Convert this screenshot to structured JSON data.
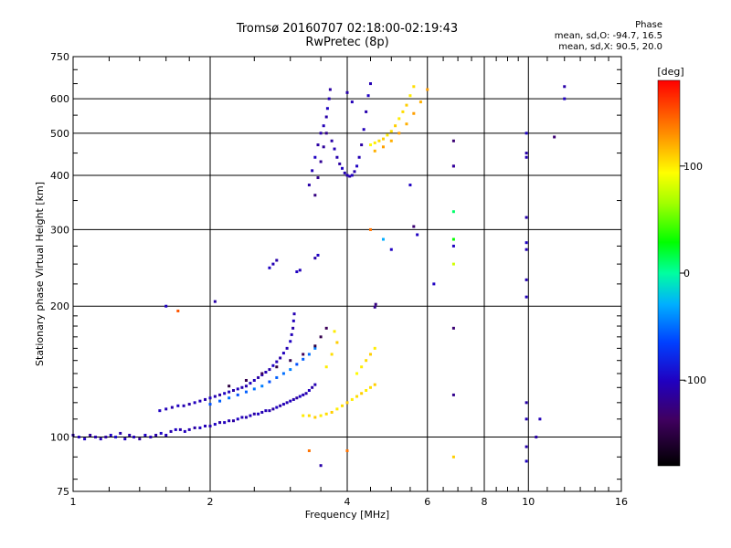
{
  "header": {
    "title": "Tromsø 20160707 02:18:00-02:19:43",
    "subtitle": "RwPretec (8p)"
  },
  "phase_info": {
    "heading": "Phase",
    "line_o": "mean, sd,O: -94.7, 16.5",
    "line_x": "mean, sd,X:  90.5, 20.0"
  },
  "chart_data": {
    "type": "scatter",
    "title": "Tromsø 20160707 02:18:00-02:19:43",
    "subtitle": "RwPretec (8p)",
    "xlabel": "Frequency [MHz]",
    "ylabel": "Stationary phase Virtual Height [km]",
    "xscale": "log",
    "yscale": "log",
    "xlim": [
      1,
      16
    ],
    "ylim": [
      75,
      750
    ],
    "x_ticks": [
      1,
      2,
      4,
      6,
      8,
      10,
      16
    ],
    "y_ticks": [
      75,
      100,
      200,
      300,
      400,
      500,
      600,
      750
    ],
    "grid": true,
    "colorbar": {
      "label": "[deg]",
      "range": [
        -180,
        180
      ],
      "ticks": [
        -100,
        0,
        100
      ]
    },
    "series": [
      {
        "points": [
          [
            1.0,
            101,
            -110
          ],
          [
            1.03,
            100,
            -105
          ],
          [
            1.06,
            99,
            -100
          ],
          [
            1.09,
            101,
            -115
          ],
          [
            1.12,
            100,
            -108
          ],
          [
            1.15,
            99,
            -104
          ],
          [
            1.18,
            100,
            -112
          ],
          [
            1.21,
            101,
            -100
          ],
          [
            1.24,
            100,
            -95
          ],
          [
            1.27,
            102,
            -110
          ],
          [
            1.3,
            99,
            -102
          ],
          [
            1.33,
            101,
            -108
          ],
          [
            1.36,
            100,
            -104
          ],
          [
            1.4,
            99,
            -115
          ],
          [
            1.44,
            101,
            -100
          ],
          [
            1.48,
            100,
            -106
          ],
          [
            1.52,
            101,
            -110
          ],
          [
            1.56,
            102,
            -98
          ],
          [
            1.6,
            101,
            -104
          ],
          [
            1.64,
            103,
            -108
          ],
          [
            1.68,
            104,
            -100
          ],
          [
            1.72,
            104,
            -110
          ],
          [
            1.76,
            103,
            -102
          ],
          [
            1.8,
            104,
            -106
          ],
          [
            1.85,
            105,
            -112
          ],
          [
            1.9,
            105,
            -100
          ],
          [
            1.95,
            106,
            -104
          ],
          [
            2.0,
            106,
            -108
          ],
          [
            2.05,
            107,
            -100
          ],
          [
            2.1,
            108,
            -110
          ],
          [
            2.15,
            108,
            -102
          ],
          [
            2.2,
            109,
            -106
          ],
          [
            2.25,
            109,
            -112
          ],
          [
            2.3,
            110,
            -100
          ],
          [
            2.35,
            111,
            -104
          ],
          [
            2.4,
            111,
            -108
          ],
          [
            2.45,
            112,
            -102
          ],
          [
            2.5,
            113,
            -110
          ],
          [
            2.55,
            113,
            -100
          ],
          [
            2.6,
            114,
            -106
          ],
          [
            2.65,
            115,
            -104
          ],
          [
            2.7,
            115,
            -108
          ],
          [
            2.75,
            116,
            -112
          ],
          [
            2.8,
            117,
            -100
          ],
          [
            2.85,
            118,
            -110
          ],
          [
            2.9,
            119,
            -104
          ],
          [
            2.95,
            120,
            -106
          ],
          [
            3.0,
            121,
            -102
          ],
          [
            3.05,
            122,
            -108
          ],
          [
            3.1,
            123,
            -112
          ],
          [
            3.15,
            124,
            -100
          ],
          [
            3.2,
            125,
            -104
          ],
          [
            3.25,
            126,
            -108
          ],
          [
            3.3,
            128,
            -102
          ],
          [
            3.35,
            130,
            -110
          ],
          [
            3.4,
            132,
            -106
          ]
        ]
      },
      {
        "points": [
          [
            1.55,
            115,
            -100
          ],
          [
            1.6,
            116,
            -104
          ],
          [
            1.65,
            117,
            -108
          ],
          [
            1.7,
            118,
            -100
          ],
          [
            1.75,
            118,
            -106
          ],
          [
            1.8,
            119,
            -110
          ],
          [
            1.85,
            120,
            -102
          ],
          [
            1.9,
            121,
            -104
          ],
          [
            1.95,
            122,
            -108
          ],
          [
            2.0,
            123,
            -100
          ],
          [
            2.05,
            124,
            -106
          ],
          [
            2.1,
            125,
            -112
          ],
          [
            2.15,
            126,
            -100
          ],
          [
            2.2,
            127,
            -104
          ],
          [
            2.25,
            128,
            -110
          ],
          [
            2.3,
            129,
            -102
          ],
          [
            2.35,
            130,
            -106
          ],
          [
            2.4,
            131,
            -108
          ],
          [
            2.45,
            133,
            -100
          ],
          [
            2.5,
            135,
            -104
          ],
          [
            2.55,
            137,
            -110
          ],
          [
            2.6,
            139,
            -102
          ],
          [
            2.65,
            141,
            -106
          ],
          [
            2.7,
            143,
            -108
          ],
          [
            2.75,
            146,
            -100
          ],
          [
            2.8,
            149,
            -104
          ],
          [
            2.85,
            152,
            -110
          ],
          [
            2.9,
            156,
            -102
          ],
          [
            2.95,
            160,
            -106
          ],
          [
            3.0,
            166,
            -100
          ],
          [
            3.02,
            172,
            -104
          ],
          [
            3.04,
            178,
            -110
          ],
          [
            3.05,
            185,
            -102
          ],
          [
            3.06,
            192,
            -106
          ]
        ]
      },
      {
        "points": [
          [
            2.0,
            119,
            -60
          ],
          [
            2.1,
            121,
            -55
          ],
          [
            2.2,
            123,
            -50
          ],
          [
            2.3,
            125,
            -60
          ],
          [
            2.4,
            127,
            -55
          ],
          [
            2.5,
            129,
            -50
          ],
          [
            2.6,
            131,
            -45
          ],
          [
            2.7,
            134,
            -60
          ],
          [
            2.8,
            137,
            -55
          ],
          [
            2.9,
            140,
            -50
          ],
          [
            3.0,
            143,
            -45
          ],
          [
            3.1,
            147,
            -60
          ],
          [
            3.2,
            151,
            -55
          ],
          [
            3.3,
            155,
            -50
          ],
          [
            3.4,
            160,
            -45
          ],
          [
            2.2,
            131,
            -150
          ],
          [
            2.4,
            135,
            -145
          ],
          [
            2.6,
            140,
            -140
          ],
          [
            2.8,
            145,
            -150
          ],
          [
            3.0,
            150,
            -145
          ],
          [
            3.2,
            155,
            -140
          ],
          [
            3.4,
            162,
            -150
          ],
          [
            3.5,
            170,
            -145
          ],
          [
            3.6,
            178,
            -140
          ]
        ]
      },
      {
        "points": [
          [
            3.2,
            112,
            100
          ],
          [
            3.3,
            112,
            105
          ],
          [
            3.4,
            111,
            110
          ],
          [
            3.5,
            112,
            100
          ],
          [
            3.6,
            113,
            105
          ],
          [
            3.7,
            114,
            110
          ],
          [
            3.8,
            116,
            100
          ],
          [
            3.9,
            118,
            105
          ],
          [
            4.0,
            120,
            110
          ],
          [
            4.1,
            122,
            100
          ],
          [
            4.2,
            124,
            105
          ],
          [
            4.3,
            126,
            110
          ],
          [
            4.4,
            128,
            100
          ],
          [
            4.5,
            130,
            105
          ],
          [
            4.6,
            132,
            110
          ],
          [
            3.6,
            145,
            100
          ],
          [
            3.7,
            155,
            105
          ],
          [
            3.8,
            165,
            110
          ],
          [
            3.75,
            175,
            100
          ],
          [
            4.2,
            140,
            95
          ],
          [
            4.3,
            145,
            100
          ],
          [
            4.4,
            150,
            105
          ],
          [
            4.5,
            155,
            110
          ],
          [
            4.6,
            160,
            100
          ]
        ]
      },
      {
        "points": [
          [
            3.3,
            380,
            -110
          ],
          [
            3.35,
            410,
            -105
          ],
          [
            3.4,
            440,
            -100
          ],
          [
            3.45,
            470,
            -112
          ],
          [
            3.5,
            500,
            -108
          ],
          [
            3.55,
            520,
            -104
          ],
          [
            3.6,
            545,
            -110
          ],
          [
            3.62,
            570,
            -100
          ],
          [
            3.65,
            600,
            -106
          ],
          [
            3.67,
            630,
            -112
          ],
          [
            3.4,
            360,
            -125
          ],
          [
            3.45,
            395,
            -120
          ],
          [
            3.5,
            430,
            -118
          ],
          [
            3.55,
            465,
            -115
          ],
          [
            3.6,
            500,
            -120
          ],
          [
            3.7,
            480,
            -110
          ],
          [
            3.75,
            460,
            -105
          ],
          [
            3.8,
            440,
            -108
          ],
          [
            3.85,
            425,
            -112
          ],
          [
            3.9,
            415,
            -100
          ],
          [
            3.95,
            405,
            -106
          ],
          [
            4.0,
            400,
            -104
          ],
          [
            4.05,
            398,
            -110
          ],
          [
            4.1,
            400,
            -102
          ],
          [
            4.15,
            408,
            -108
          ],
          [
            4.2,
            420,
            -100
          ],
          [
            4.25,
            440,
            -106
          ],
          [
            4.3,
            470,
            -112
          ],
          [
            4.35,
            510,
            -104
          ],
          [
            4.4,
            560,
            -108
          ],
          [
            4.45,
            610,
            -100
          ],
          [
            4.5,
            650,
            -106
          ],
          [
            4.0,
            620,
            -110
          ],
          [
            4.1,
            590,
            -104
          ]
        ]
      },
      {
        "points": [
          [
            4.5,
            470,
            95
          ],
          [
            4.6,
            475,
            100
          ],
          [
            4.7,
            480,
            105
          ],
          [
            4.8,
            485,
            110
          ],
          [
            4.9,
            495,
            100
          ],
          [
            5.0,
            505,
            105
          ],
          [
            5.1,
            520,
            110
          ],
          [
            5.2,
            540,
            100
          ],
          [
            5.3,
            560,
            105
          ],
          [
            5.4,
            580,
            110
          ],
          [
            5.5,
            610,
            100
          ],
          [
            5.6,
            640,
            105
          ],
          [
            4.6,
            455,
            120
          ],
          [
            4.8,
            465,
            125
          ],
          [
            5.0,
            480,
            120
          ],
          [
            5.2,
            500,
            125
          ],
          [
            5.4,
            525,
            120
          ],
          [
            5.6,
            555,
            125
          ],
          [
            5.8,
            590,
            120
          ],
          [
            6.0,
            630,
            125
          ]
        ]
      },
      {
        "points": [
          [
            2.7,
            245,
            -100
          ],
          [
            2.75,
            250,
            -105
          ],
          [
            2.8,
            255,
            -110
          ],
          [
            3.1,
            240,
            -100
          ],
          [
            3.15,
            242,
            -104
          ],
          [
            3.4,
            258,
            -110
          ],
          [
            3.45,
            262,
            -100
          ],
          [
            4.5,
            300,
            140
          ],
          [
            4.8,
            285,
            -30
          ],
          [
            5.0,
            270,
            -100
          ],
          [
            5.5,
            380,
            -100
          ],
          [
            5.6,
            305,
            -130
          ],
          [
            5.7,
            292,
            -100
          ],
          [
            4.6,
            199,
            -120
          ],
          [
            4.62,
            202,
            -125
          ],
          [
            6.85,
            480,
            -130
          ],
          [
            6.85,
            420,
            160
          ],
          [
            6.85,
            420,
            -110
          ],
          [
            6.85,
            330,
            10
          ],
          [
            6.85,
            285,
            30
          ],
          [
            6.85,
            275,
            -100
          ],
          [
            6.85,
            250,
            80
          ],
          [
            6.85,
            178,
            -130
          ],
          [
            6.85,
            125,
            -120
          ],
          [
            6.85,
            90,
            110
          ],
          [
            6.2,
            225,
            -100
          ],
          [
            9.9,
            500,
            -100
          ],
          [
            9.9,
            450,
            -110
          ],
          [
            9.9,
            440,
            -105
          ],
          [
            9.9,
            320,
            -108
          ],
          [
            9.9,
            280,
            -100
          ],
          [
            9.9,
            270,
            -104
          ],
          [
            9.9,
            230,
            -106
          ],
          [
            9.9,
            210,
            -102
          ],
          [
            9.9,
            120,
            -110
          ],
          [
            9.9,
            110,
            -104
          ],
          [
            9.9,
            95,
            -108
          ],
          [
            9.9,
            88,
            -100
          ],
          [
            10.4,
            100,
            -110
          ],
          [
            10.6,
            110,
            -104
          ],
          [
            12.0,
            640,
            -110
          ],
          [
            12.0,
            600,
            -100
          ],
          [
            11.4,
            490,
            -130
          ],
          [
            1.6,
            200,
            -100
          ],
          [
            2.05,
            205,
            -110
          ],
          [
            1.7,
            195,
            150
          ],
          [
            3.3,
            93,
            140
          ],
          [
            3.5,
            86,
            -110
          ],
          [
            4.0,
            93,
            140
          ]
        ]
      }
    ]
  }
}
